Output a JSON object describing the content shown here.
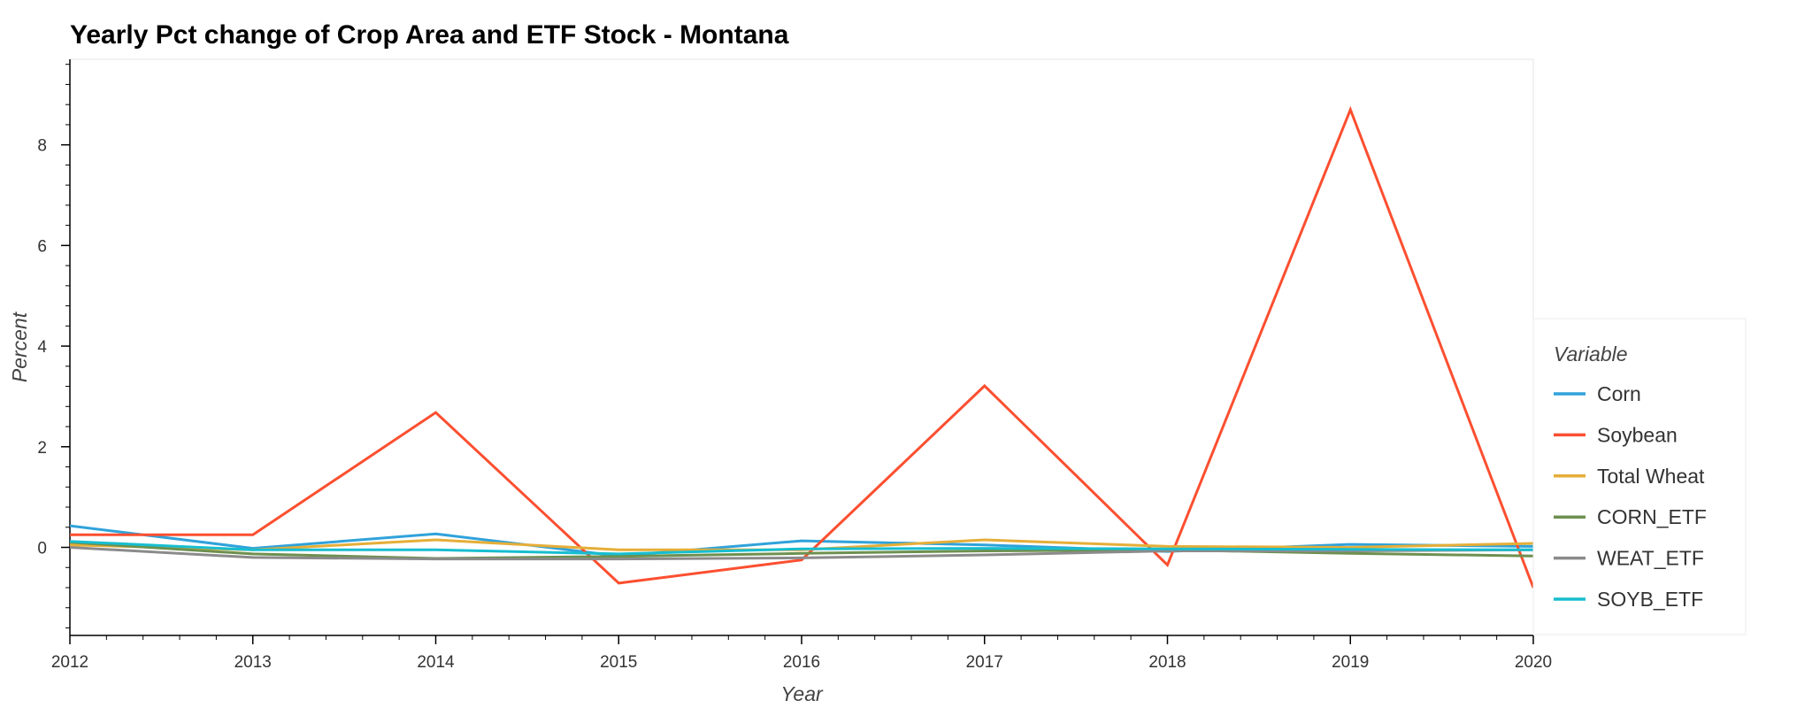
{
  "chart_data": {
    "type": "line",
    "title": "Yearly Pct change of Crop Area and ETF Stock - Montana",
    "xlabel": "Year",
    "ylabel": "Percent",
    "x": [
      2012,
      2013,
      2014,
      2015,
      2016,
      2017,
      2018,
      2019,
      2020
    ],
    "xlim": [
      2012,
      2020
    ],
    "ylim": [
      -1.75,
      9.7
    ],
    "x_ticks": [
      "2012",
      "2013",
      "2014",
      "2015",
      "2016",
      "2017",
      "2018",
      "2019",
      "2020"
    ],
    "y_ticks": [
      "0",
      "2",
      "4",
      "6",
      "8"
    ],
    "grid": false,
    "legend_title": "Variable",
    "legend_position": "right",
    "series": [
      {
        "name": "Corn",
        "color": "#30a2da",
        "values": [
          0.43,
          -0.02,
          0.27,
          -0.17,
          0.13,
          0.05,
          -0.08,
          0.06,
          0.02
        ]
      },
      {
        "name": "Soybean",
        "color": "#fc4f30",
        "values": [
          0.25,
          0.25,
          2.68,
          -0.71,
          -0.25,
          3.21,
          -0.35,
          8.7,
          -0.8
        ]
      },
      {
        "name": "Total Wheat",
        "color": "#e5ae38",
        "values": [
          0.05,
          -0.05,
          0.15,
          -0.05,
          -0.05,
          0.15,
          0.02,
          0.0,
          0.08
        ]
      },
      {
        "name": "CORN_ETF",
        "color": "#6d904f",
        "values": [
          0.1,
          -0.13,
          -0.22,
          -0.18,
          -0.12,
          -0.07,
          -0.05,
          -0.12,
          -0.17
        ]
      },
      {
        "name": "WEAT_ETF",
        "color": "#8b8b8b",
        "values": [
          0.0,
          -0.2,
          -0.23,
          -0.23,
          -0.21,
          -0.15,
          -0.07,
          -0.07,
          -0.05
        ]
      },
      {
        "name": "SOYB_ETF",
        "color": "#17becf",
        "values": [
          0.12,
          -0.05,
          -0.05,
          -0.13,
          -0.03,
          -0.02,
          -0.03,
          -0.04,
          -0.05
        ]
      }
    ]
  }
}
